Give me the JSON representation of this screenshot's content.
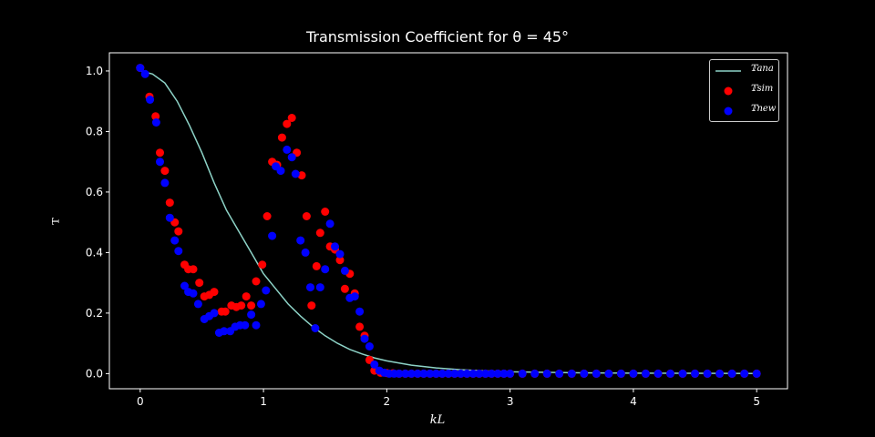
{
  "chart_data": {
    "type": "scatter",
    "title": "Transmission Coefficient for θ = 45°",
    "xlabel": "kL",
    "ylabel": "𝕋",
    "xlim": [
      -0.25,
      5.25
    ],
    "ylim": [
      -0.05,
      1.06
    ],
    "xticks": [
      0,
      1,
      2,
      3,
      4,
      5
    ],
    "yticks": [
      0.0,
      0.2,
      0.4,
      0.6,
      0.8,
      1.0
    ],
    "ytick_labels": [
      "0.0",
      "0.2",
      "0.4",
      "0.6",
      "0.8",
      "1.0"
    ],
    "grid": false,
    "legend_position": "upper right",
    "background": "#000000",
    "series": [
      {
        "name": "𝕋ana",
        "kind": "line",
        "color": "#8dd3c7",
        "x": [
          0,
          0.1,
          0.2,
          0.3,
          0.4,
          0.5,
          0.6,
          0.7,
          0.8,
          0.9,
          1.0,
          1.1,
          1.2,
          1.3,
          1.4,
          1.5,
          1.6,
          1.7,
          1.8,
          1.9,
          2.0,
          2.2,
          2.4,
          2.6,
          2.8,
          3.0,
          3.5,
          4.0,
          4.5,
          5.0
        ],
        "y": [
          1.0,
          0.99,
          0.96,
          0.9,
          0.82,
          0.73,
          0.63,
          0.54,
          0.47,
          0.4,
          0.33,
          0.28,
          0.23,
          0.19,
          0.155,
          0.125,
          0.1,
          0.08,
          0.065,
          0.052,
          0.042,
          0.028,
          0.019,
          0.013,
          0.009,
          0.006,
          0.003,
          0.0015,
          0.001,
          0.0005
        ]
      },
      {
        "name": "𝕋sim",
        "kind": "scatter",
        "color": "#ff0000",
        "x": [
          0.0,
          0.075,
          0.125,
          0.16,
          0.2,
          0.24,
          0.28,
          0.31,
          0.36,
          0.39,
          0.43,
          0.48,
          0.52,
          0.56,
          0.6,
          0.66,
          0.69,
          0.74,
          0.78,
          0.82,
          0.86,
          0.9,
          0.94,
          0.99,
          1.03,
          1.07,
          1.11,
          1.15,
          1.19,
          1.23,
          1.27,
          1.31,
          1.35,
          1.39,
          1.43,
          1.46,
          1.5,
          1.54,
          1.58,
          1.62,
          1.66,
          1.7,
          1.74,
          1.78,
          1.82,
          1.86,
          1.9,
          1.95,
          2.0,
          2.05,
          2.1,
          2.15,
          2.2,
          2.25,
          2.3,
          2.35,
          2.4,
          2.45,
          2.5,
          2.55,
          2.6,
          2.65,
          2.7,
          2.75,
          2.8,
          2.85,
          2.9,
          2.95,
          3.0,
          3.1,
          3.2,
          3.3,
          3.4,
          3.5,
          3.6,
          3.7,
          3.8,
          3.9,
          4.0,
          4.1,
          4.2,
          4.3,
          4.4,
          4.5,
          4.6,
          4.7,
          4.8,
          4.9,
          5.0
        ],
        "y": [
          1.01,
          0.915,
          0.85,
          0.73,
          0.67,
          0.565,
          0.5,
          0.47,
          0.36,
          0.345,
          0.345,
          0.3,
          0.255,
          0.26,
          0.27,
          0.205,
          0.205,
          0.225,
          0.22,
          0.225,
          0.255,
          0.225,
          0.305,
          0.36,
          0.52,
          0.7,
          0.69,
          0.78,
          0.825,
          0.845,
          0.73,
          0.655,
          0.52,
          0.225,
          0.355,
          0.465,
          0.535,
          0.42,
          0.41,
          0.375,
          0.28,
          0.33,
          0.265,
          0.155,
          0.125,
          0.045,
          0.01,
          0.003,
          0.002,
          0.001,
          0.0,
          0.0,
          0.0,
          0.0,
          0.0,
          0.0,
          0.0,
          0.0,
          0.0,
          0.0,
          0.0,
          0.0,
          0.0,
          0.0,
          0.0,
          0.0,
          0.0,
          0.0,
          0.0,
          0.0,
          0.0,
          0.0,
          0.0,
          0.0,
          0.0,
          0.0,
          0.0,
          0.0,
          0.0,
          0.0,
          0.0,
          0.0,
          0.0,
          0.0,
          0.0,
          0.0,
          0.0,
          0.0,
          0.0
        ]
      },
      {
        "name": "𝕋new",
        "kind": "scatter",
        "color": "#0000ff",
        "x": [
          0.0,
          0.04,
          0.08,
          0.13,
          0.16,
          0.2,
          0.24,
          0.28,
          0.31,
          0.36,
          0.39,
          0.43,
          0.47,
          0.52,
          0.56,
          0.6,
          0.64,
          0.68,
          0.73,
          0.77,
          0.81,
          0.85,
          0.9,
          0.94,
          0.98,
          1.02,
          1.07,
          1.1,
          1.14,
          1.19,
          1.23,
          1.26,
          1.3,
          1.34,
          1.38,
          1.42,
          1.46,
          1.5,
          1.54,
          1.58,
          1.62,
          1.66,
          1.7,
          1.74,
          1.78,
          1.82,
          1.86,
          1.9,
          1.94,
          1.98,
          2.02,
          2.06,
          2.1,
          2.15,
          2.2,
          2.25,
          2.3,
          2.35,
          2.4,
          2.45,
          2.5,
          2.55,
          2.6,
          2.65,
          2.7,
          2.75,
          2.8,
          2.85,
          2.9,
          2.95,
          3.0,
          3.1,
          3.2,
          3.3,
          3.4,
          3.5,
          3.6,
          3.7,
          3.8,
          3.9,
          4.0,
          4.1,
          4.2,
          4.3,
          4.4,
          4.5,
          4.6,
          4.7,
          4.8,
          4.9,
          5.0
        ],
        "y": [
          1.01,
          0.99,
          0.905,
          0.83,
          0.7,
          0.63,
          0.515,
          0.44,
          0.405,
          0.29,
          0.27,
          0.265,
          0.23,
          0.18,
          0.19,
          0.2,
          0.135,
          0.14,
          0.14,
          0.155,
          0.16,
          0.16,
          0.195,
          0.16,
          0.23,
          0.275,
          0.455,
          0.685,
          0.67,
          0.74,
          0.715,
          0.66,
          0.44,
          0.4,
          0.285,
          0.15,
          0.285,
          0.345,
          0.495,
          0.42,
          0.395,
          0.34,
          0.25,
          0.255,
          0.205,
          0.115,
          0.09,
          0.03,
          0.01,
          0.003,
          0.0,
          0.0,
          0.0,
          0.0,
          0.0,
          0.0,
          0.0,
          0.0,
          0.0,
          0.0,
          0.0,
          0.0,
          0.0,
          0.0,
          0.0,
          0.0,
          0.0,
          0.0,
          0.0,
          0.0,
          0.0,
          0.0,
          0.0,
          0.0,
          0.0,
          0.0,
          0.0,
          0.0,
          0.0,
          0.0,
          0.0,
          0.0,
          0.0,
          0.0,
          0.0,
          0.0,
          0.0,
          0.0,
          0.0,
          0.0,
          0.0
        ]
      }
    ]
  }
}
